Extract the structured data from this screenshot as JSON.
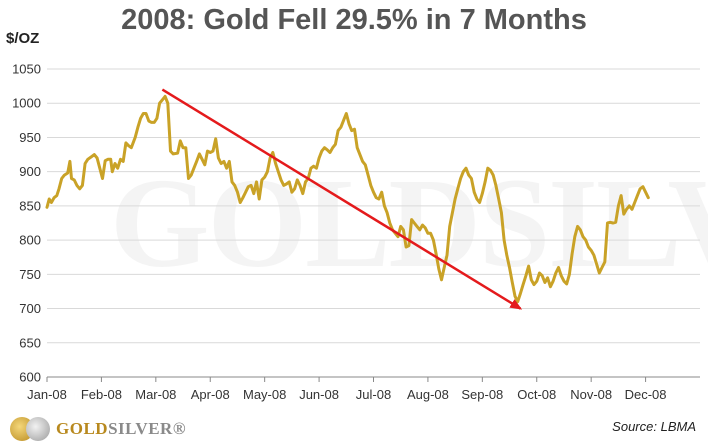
{
  "title": "2008: Gold Fell 29.5% in 7 Months",
  "unit_label": "$/OZ",
  "source": "Source: LBMA",
  "logo": {
    "part1": "GOLD",
    "part2": "SILVER",
    "mark": "®"
  },
  "watermark": "GOLDSILVER",
  "colors": {
    "line": "#c9a227",
    "trend": "#e41a1c",
    "grid": "#d9d9d9",
    "axis": "#888888"
  },
  "chart_data": {
    "type": "line",
    "title": "2008: Gold Fell 29.5% in 7 Months",
    "ylabel": "$/OZ",
    "xlabel": "",
    "ylim": [
      600,
      1050
    ],
    "yticks": [
      600,
      650,
      700,
      750,
      800,
      850,
      900,
      950,
      1000,
      1050
    ],
    "xtick_labels": [
      "Jan-08",
      "Feb-08",
      "Mar-08",
      "Apr-08",
      "May-08",
      "Jun-08",
      "Jul-08",
      "Aug-08",
      "Sep-08",
      "Oct-08",
      "Nov-08",
      "Dec-08"
    ],
    "x_range_months": [
      0,
      12
    ],
    "grid": "horizontal",
    "series": [
      {
        "values": [
          [
            0.0,
            848
          ],
          [
            0.04,
            860
          ],
          [
            0.08,
            855
          ],
          [
            0.13,
            862
          ],
          [
            0.18,
            865
          ],
          [
            0.22,
            875
          ],
          [
            0.27,
            890
          ],
          [
            0.32,
            895
          ],
          [
            0.38,
            898
          ],
          [
            0.42,
            915
          ],
          [
            0.45,
            890
          ],
          [
            0.5,
            888
          ],
          [
            0.55,
            880
          ],
          [
            0.6,
            875
          ],
          [
            0.65,
            880
          ],
          [
            0.7,
            912
          ],
          [
            0.75,
            918
          ],
          [
            0.82,
            922
          ],
          [
            0.87,
            925
          ],
          [
            0.92,
            920
          ],
          [
            0.97,
            905
          ],
          [
            1.02,
            890
          ],
          [
            1.07,
            916
          ],
          [
            1.12,
            918
          ],
          [
            1.17,
            918
          ],
          [
            1.2,
            900
          ],
          [
            1.25,
            912
          ],
          [
            1.3,
            905
          ],
          [
            1.35,
            918
          ],
          [
            1.4,
            915
          ],
          [
            1.45,
            942
          ],
          [
            1.5,
            938
          ],
          [
            1.55,
            935
          ],
          [
            1.62,
            950
          ],
          [
            1.67,
            965
          ],
          [
            1.72,
            978
          ],
          [
            1.77,
            985
          ],
          [
            1.82,
            985
          ],
          [
            1.87,
            974
          ],
          [
            1.92,
            972
          ],
          [
            1.97,
            972
          ],
          [
            2.02,
            978
          ],
          [
            2.07,
            1000
          ],
          [
            2.12,
            1005
          ],
          [
            2.17,
            1010
          ],
          [
            2.22,
            1000
          ],
          [
            2.27,
            930
          ],
          [
            2.32,
            926
          ],
          [
            2.4,
            927
          ],
          [
            2.45,
            945
          ],
          [
            2.5,
            935
          ],
          [
            2.55,
            935
          ],
          [
            2.6,
            890
          ],
          [
            2.65,
            895
          ],
          [
            2.7,
            905
          ],
          [
            2.75,
            915
          ],
          [
            2.8,
            926
          ],
          [
            2.85,
            918
          ],
          [
            2.9,
            910
          ],
          [
            2.95,
            930
          ],
          [
            3.0,
            928
          ],
          [
            3.05,
            930
          ],
          [
            3.1,
            948
          ],
          [
            3.15,
            920
          ],
          [
            3.2,
            912
          ],
          [
            3.25,
            915
          ],
          [
            3.3,
            905
          ],
          [
            3.35,
            915
          ],
          [
            3.4,
            885
          ],
          [
            3.45,
            880
          ],
          [
            3.5,
            870
          ],
          [
            3.55,
            855
          ],
          [
            3.6,
            862
          ],
          [
            3.65,
            870
          ],
          [
            3.7,
            878
          ],
          [
            3.75,
            880
          ],
          [
            3.8,
            868
          ],
          [
            3.85,
            885
          ],
          [
            3.9,
            860
          ],
          [
            3.95,
            888
          ],
          [
            4.0,
            892
          ],
          [
            4.05,
            900
          ],
          [
            4.1,
            920
          ],
          [
            4.15,
            928
          ],
          [
            4.2,
            912
          ],
          [
            4.25,
            900
          ],
          [
            4.3,
            888
          ],
          [
            4.35,
            880
          ],
          [
            4.4,
            882
          ],
          [
            4.45,
            885
          ],
          [
            4.5,
            870
          ],
          [
            4.55,
            875
          ],
          [
            4.6,
            888
          ],
          [
            4.65,
            880
          ],
          [
            4.7,
            868
          ],
          [
            4.75,
            885
          ],
          [
            4.8,
            890
          ],
          [
            4.85,
            905
          ],
          [
            4.9,
            908
          ],
          [
            4.95,
            905
          ],
          [
            5.0,
            920
          ],
          [
            5.05,
            930
          ],
          [
            5.1,
            935
          ],
          [
            5.15,
            932
          ],
          [
            5.2,
            928
          ],
          [
            5.25,
            935
          ],
          [
            5.3,
            940
          ],
          [
            5.35,
            960
          ],
          [
            5.4,
            965
          ],
          [
            5.45,
            975
          ],
          [
            5.5,
            985
          ],
          [
            5.55,
            970
          ],
          [
            5.6,
            960
          ],
          [
            5.65,
            962
          ],
          [
            5.7,
            935
          ],
          [
            5.75,
            925
          ],
          [
            5.8,
            915
          ],
          [
            5.85,
            910
          ],
          [
            5.9,
            895
          ],
          [
            5.95,
            880
          ],
          [
            6.0,
            870
          ],
          [
            6.05,
            862
          ],
          [
            6.1,
            860
          ],
          [
            6.15,
            870
          ],
          [
            6.2,
            850
          ],
          [
            6.25,
            840
          ],
          [
            6.3,
            825
          ],
          [
            6.35,
            815
          ],
          [
            6.4,
            810
          ],
          [
            6.45,
            805
          ],
          [
            6.5,
            820
          ],
          [
            6.55,
            815
          ],
          [
            6.6,
            790
          ],
          [
            6.65,
            792
          ],
          [
            6.7,
            830
          ],
          [
            6.75,
            825
          ],
          [
            6.8,
            820
          ],
          [
            6.85,
            815
          ],
          [
            6.9,
            822
          ],
          [
            6.95,
            818
          ],
          [
            7.0,
            810
          ],
          [
            7.05,
            810
          ],
          [
            7.1,
            800
          ],
          [
            7.15,
            780
          ],
          [
            7.2,
            758
          ],
          [
            7.25,
            742
          ],
          [
            7.3,
            760
          ],
          [
            7.35,
            778
          ],
          [
            7.4,
            820
          ],
          [
            7.45,
            840
          ],
          [
            7.5,
            860
          ],
          [
            7.55,
            875
          ],
          [
            7.6,
            890
          ],
          [
            7.65,
            900
          ],
          [
            7.7,
            905
          ],
          [
            7.75,
            895
          ],
          [
            7.8,
            890
          ],
          [
            7.85,
            870
          ],
          [
            7.9,
            860
          ],
          [
            7.95,
            855
          ],
          [
            8.0,
            868
          ],
          [
            8.05,
            885
          ],
          [
            8.1,
            905
          ],
          [
            8.15,
            902
          ],
          [
            8.2,
            895
          ],
          [
            8.25,
            880
          ],
          [
            8.3,
            860
          ],
          [
            8.35,
            840
          ],
          [
            8.4,
            800
          ],
          [
            8.45,
            778
          ],
          [
            8.5,
            760
          ],
          [
            8.55,
            738
          ],
          [
            8.6,
            718
          ],
          [
            8.65,
            710
          ],
          [
            8.7,
            722
          ],
          [
            8.75,
            735
          ],
          [
            8.8,
            748
          ],
          [
            8.85,
            762
          ],
          [
            8.9,
            742
          ],
          [
            8.95,
            735
          ],
          [
            9.0,
            740
          ],
          [
            9.05,
            752
          ],
          [
            9.1,
            748
          ],
          [
            9.15,
            738
          ],
          [
            9.2,
            745
          ],
          [
            9.25,
            732
          ],
          [
            9.3,
            740
          ],
          [
            9.35,
            752
          ],
          [
            9.4,
            760
          ],
          [
            9.45,
            748
          ],
          [
            9.5,
            740
          ],
          [
            9.55,
            736
          ],
          [
            9.6,
            750
          ],
          [
            9.65,
            780
          ],
          [
            9.7,
            805
          ],
          [
            9.75,
            820
          ],
          [
            9.8,
            815
          ],
          [
            9.85,
            805
          ],
          [
            9.9,
            800
          ],
          [
            9.95,
            790
          ],
          [
            10.0,
            785
          ],
          [
            10.05,
            778
          ],
          [
            10.1,
            765
          ],
          [
            10.15,
            752
          ],
          [
            10.2,
            760
          ],
          [
            10.25,
            768
          ],
          [
            10.3,
            825
          ],
          [
            10.35,
            826
          ],
          [
            10.4,
            825
          ],
          [
            10.45,
            826
          ],
          [
            10.5,
            850
          ],
          [
            10.55,
            865
          ],
          [
            10.6,
            838
          ],
          [
            10.65,
            845
          ],
          [
            10.7,
            850
          ],
          [
            10.75,
            845
          ],
          [
            10.8,
            855
          ],
          [
            10.85,
            865
          ],
          [
            10.9,
            875
          ],
          [
            10.95,
            878
          ],
          [
            11.0,
            870
          ],
          [
            11.05,
            862
          ]
        ]
      }
    ],
    "annotations": [
      {
        "type": "arrow",
        "from": [
          2.12,
          1020
        ],
        "to": [
          8.7,
          700
        ]
      }
    ]
  }
}
